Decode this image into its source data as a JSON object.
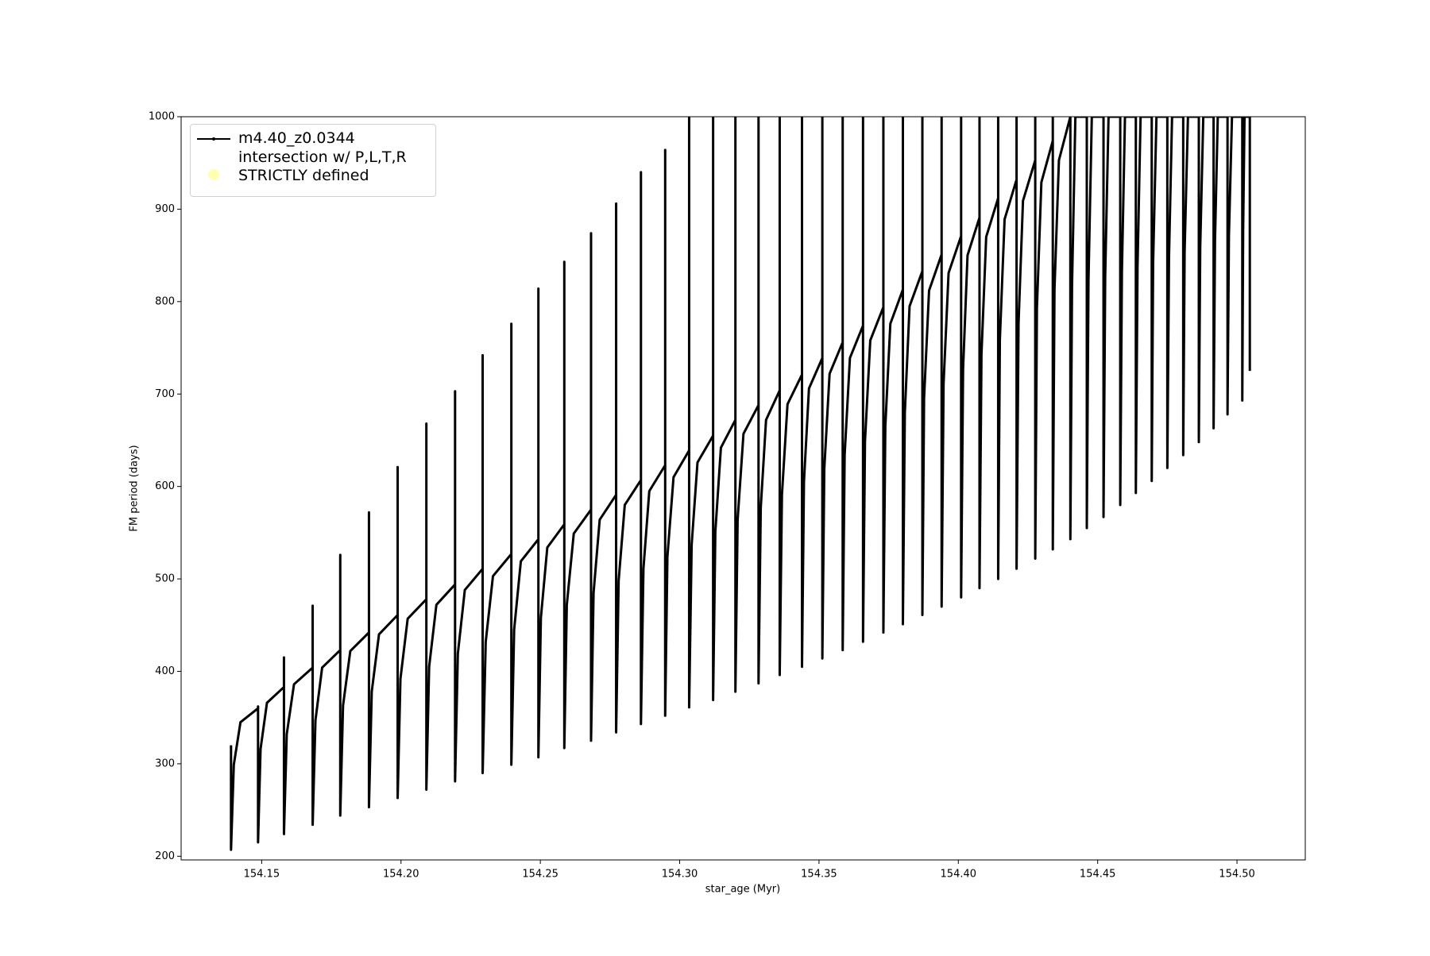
{
  "chart_data": {
    "type": "line",
    "xlabel": "star_age (Myr)",
    "ylabel": "FM period (days)",
    "xlim": [
      154.1211,
      154.5245
    ],
    "ylim": [
      196,
      1000
    ],
    "xticks": [
      154.15,
      {
        "value": 154.2,
        "label": "154.20"
      },
      154.25,
      {
        "value": 154.3,
        "label": "154.30"
      },
      154.35,
      {
        "value": 154.4,
        "label": "154.40"
      },
      154.45,
      {
        "value": 154.5,
        "label": "154.50"
      }
    ],
    "yticks": [
      200,
      300,
      400,
      500,
      600,
      700,
      800,
      900,
      1000
    ],
    "grid": false,
    "legend": "upper left",
    "series": [
      {
        "name": "m4.40_z0.0344",
        "color": "#000000",
        "marker": "o",
        "x": [
          154.139,
          154.139,
          154.14,
          154.1424,
          154.1487,
          154.1487,
          154.1487,
          154.1496,
          154.1519,
          154.158,
          154.158,
          154.158,
          154.159,
          154.1616,
          154.1683,
          154.1683,
          154.1683,
          154.1693,
          154.1717,
          154.1782,
          154.1782,
          154.1782,
          154.1792,
          154.1818,
          154.1885,
          154.1885,
          154.1885,
          154.1895,
          154.1921,
          154.1988,
          154.1988,
          154.1988,
          154.1998,
          154.2024,
          154.2091,
          154.2091,
          154.2091,
          154.2101,
          154.2127,
          154.2194,
          154.2194,
          154.2194,
          154.2204,
          154.2229,
          154.2293,
          154.2293,
          154.2293,
          154.2304,
          154.233,
          154.2396,
          154.2396,
          154.2396,
          154.2406,
          154.243,
          154.2493,
          154.2493,
          154.2493,
          154.2502,
          154.2525,
          154.2586,
          154.2586,
          154.2586,
          154.2595,
          154.262,
          154.2682,
          154.2682,
          154.2682,
          154.2691,
          154.2713,
          154.2772,
          154.2772,
          154.2772,
          154.2781,
          154.2803,
          154.2861,
          154.2861,
          154.2861,
          154.287,
          154.2891,
          154.2948,
          154.2948,
          154.2948,
          154.2956,
          154.2978,
          154.3034,
          154.3034,
          154.3034,
          154.3043,
          154.3064,
          154.312,
          154.312,
          154.312,
          154.3128,
          154.3148,
          154.32,
          154.32,
          154.32,
          154.3208,
          154.3229,
          154.3283,
          154.3283,
          154.3283,
          154.3291,
          154.331,
          154.3359,
          154.3359,
          154.3359,
          154.3367,
          154.3387,
          154.3439,
          154.3439,
          154.3439,
          154.3446,
          154.3464,
          154.3512,
          154.3512,
          154.3512,
          154.3519,
          154.3538,
          154.3585,
          154.3585,
          154.3585,
          154.3592,
          154.3611,
          154.3658,
          154.3658,
          154.3658,
          154.3665,
          154.3684,
          154.3731,
          154.3731,
          154.3731,
          154.3738,
          154.3756,
          154.3801,
          154.3801,
          154.3801,
          154.3808,
          154.3825,
          154.3871,
          154.3871,
          154.3871,
          154.3877,
          154.3895,
          154.394,
          154.394,
          154.394,
          154.3947,
          154.3965,
          154.401,
          154.401,
          154.401,
          154.4017,
          154.4033,
          154.4076,
          154.4076,
          154.4076,
          154.4083,
          154.41,
          154.4143,
          154.4143,
          154.4143,
          154.4149,
          154.4166,
          154.4209,
          154.4209,
          154.4209,
          154.4216,
          154.4232,
          154.4276,
          154.4276,
          154.4276,
          154.4282,
          154.4298,
          154.4339,
          154.4339,
          154.4339,
          154.4345,
          154.4361,
          154.4402,
          154.4402,
          154.4408,
          154.442,
          154.4461,
          154.4461,
          154.4467,
          154.4479,
          154.4521,
          154.4521,
          154.4527,
          154.4539,
          154.4581,
          154.4581,
          154.4587,
          154.4598,
          154.4637,
          154.4637,
          154.4643,
          154.4654,
          154.4694,
          154.4694,
          154.4699,
          154.4711,
          154.475,
          154.475,
          154.4756,
          154.4767,
          154.4807,
          154.4807,
          154.4812,
          154.4824,
          154.4863,
          154.4863,
          154.4868,
          154.4879,
          154.4916,
          154.4916,
          154.4921,
          154.4931,
          154.4966,
          154.4966,
          154.4971,
          154.4982,
          154.5019,
          154.5019,
          154.5022,
          154.5027,
          154.5046,
          154.5046
        ],
        "values": [
          320,
          207,
          299,
          345,
          360,
          362,
          215,
          316,
          366,
          383,
          415,
          224,
          332,
          386,
          404,
          471,
          234,
          347,
          404,
          423,
          526,
          244,
          363,
          422,
          442,
          572,
          253,
          378,
          440,
          461,
          621,
          263,
          392,
          457,
          478,
          668,
          272,
          405,
          472,
          494,
          703,
          281,
          419,
          488,
          511,
          742,
          290,
          432,
          503,
          527,
          776,
          299,
          445,
          519,
          543,
          814,
          307,
          458,
          534,
          559,
          843,
          317,
          472,
          549,
          575,
          874,
          325,
          485,
          564,
          591,
          906,
          334,
          498,
          580,
          607,
          940,
          343,
          511,
          595,
          623,
          964,
          352,
          524,
          610,
          639,
          1000,
          361,
          537,
          626,
          655,
          1000,
          369,
          551,
          642,
          672,
          1000,
          378,
          564,
          657,
          688,
          1000,
          387,
          577,
          672,
          704,
          1000,
          396,
          591,
          689,
          721,
          1000,
          405,
          605,
          706,
          739,
          1000,
          414,
          619,
          722,
          756,
          1000,
          423,
          634,
          739,
          774,
          1000,
          432,
          649,
          758,
          794,
          1000,
          442,
          665,
          776,
          813,
          1000,
          451,
          680,
          795,
          833,
          1000,
          461,
          695,
          812,
          851,
          1000,
          470,
          711,
          831,
          871,
          1000,
          480,
          727,
          850,
          891,
          1000,
          490,
          743,
          870,
          912,
          1000,
          500,
          759,
          889,
          932,
          1000,
          511,
          776,
          909,
          953,
          1000,
          522,
          793,
          929,
          974,
          1000,
          532,
          813,
          953,
          1000,
          543,
          817,
          1000,
          1000,
          555,
          822,
          1000,
          1000,
          567,
          827,
          1000,
          1000,
          580,
          832,
          1000,
          1000,
          593,
          837,
          1000,
          1000,
          606,
          842,
          1000,
          1000,
          620,
          848,
          1000,
          1000,
          634,
          854,
          1000,
          1000,
          648,
          859,
          1000,
          1000,
          663,
          865,
          1000,
          1000,
          678,
          871,
          1000,
          1000,
          693,
          877,
          1000,
          1000,
          725
        ]
      },
      {
        "name": "intersection w/ P,L,T,R\nSTRICTLY defined",
        "color": "#ffffb3",
        "marker": "o",
        "type": "scatter",
        "x": [],
        "values": []
      }
    ]
  }
}
